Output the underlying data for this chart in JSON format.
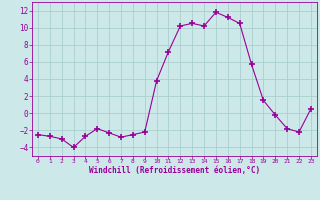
{
  "x": [
    0,
    1,
    2,
    3,
    4,
    5,
    6,
    7,
    8,
    9,
    10,
    11,
    12,
    13,
    14,
    15,
    16,
    17,
    18,
    19,
    20,
    21,
    22,
    23
  ],
  "y": [
    -2.5,
    -2.7,
    -3.0,
    -4.0,
    -2.7,
    -1.8,
    -2.3,
    -2.8,
    -2.5,
    -2.2,
    3.8,
    7.2,
    10.2,
    10.5,
    10.2,
    11.8,
    11.2,
    10.5,
    5.7,
    1.5,
    -0.2,
    -1.8,
    -2.2,
    0.5
  ],
  "line_color": "#990099",
  "marker": "+",
  "marker_size": 4,
  "bg_color": "#cce8e8",
  "grid_color": "#aacece",
  "xlabel": "Windchill (Refroidissement éolien,°C)",
  "xlabel_color": "#990099",
  "tick_color": "#990099",
  "yticks": [
    -4,
    -2,
    0,
    2,
    4,
    6,
    8,
    10,
    12
  ],
  "xticks": [
    0,
    1,
    2,
    3,
    4,
    5,
    6,
    7,
    8,
    9,
    10,
    11,
    12,
    13,
    14,
    15,
    16,
    17,
    18,
    19,
    20,
    21,
    22,
    23
  ],
  "ylim": [
    -5,
    13
  ],
  "xlim": [
    -0.5,
    23.5
  ]
}
